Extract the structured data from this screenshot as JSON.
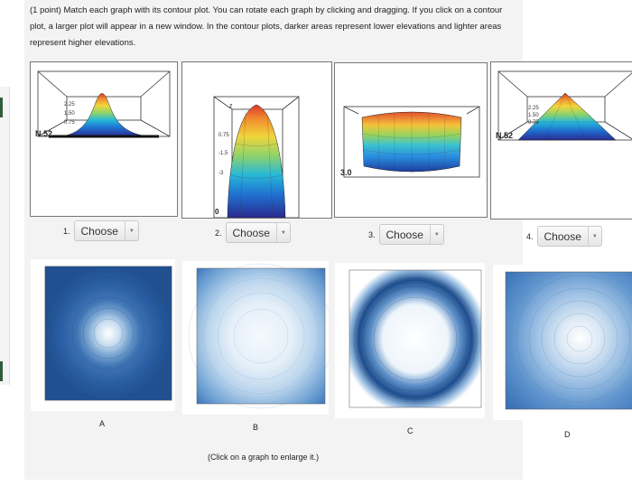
{
  "instructions": "(1 point) Match each graph with its contour plot. You can rotate each graph by clicking and dragging. If you click on a contour plot, a larger plot will appear in a new window. In the contour plots, darker areas represent lower elevations and lighter areas represent higher elevations.",
  "graphs": [
    {
      "axis_z": "z",
      "ticks": [
        "2.25",
        "1.50",
        "0.75"
      ],
      "corner_label": "N.52"
    },
    {
      "axis_z": "z",
      "ticks": [
        "0.75",
        "-1.5",
        "-3"
      ],
      "corner_label": "0"
    },
    {
      "corner_label": "3.0"
    },
    {
      "axis_z": "z",
      "ticks": [
        "2.25",
        "1.50",
        "0.75"
      ],
      "corner_label": "N.52"
    }
  ],
  "selects": [
    {
      "number": "1.",
      "value": "Choose"
    },
    {
      "number": "2.",
      "value": "Choose"
    },
    {
      "number": "3.",
      "value": "Choose"
    },
    {
      "number": "4.",
      "value": "Choose"
    }
  ],
  "contours": [
    {
      "letter": "A"
    },
    {
      "letter": "B"
    },
    {
      "letter": "C"
    },
    {
      "letter": "D"
    }
  ],
  "enlarge_hint": "(Click on a graph to enlarge it.)",
  "colors": {
    "dark_blue": "#1f4e91",
    "light": "#f4f9fd",
    "panel": "#f3f3f3",
    "accent": "#2f5d3a"
  },
  "icons": {
    "dropdown": "triangle-down"
  }
}
